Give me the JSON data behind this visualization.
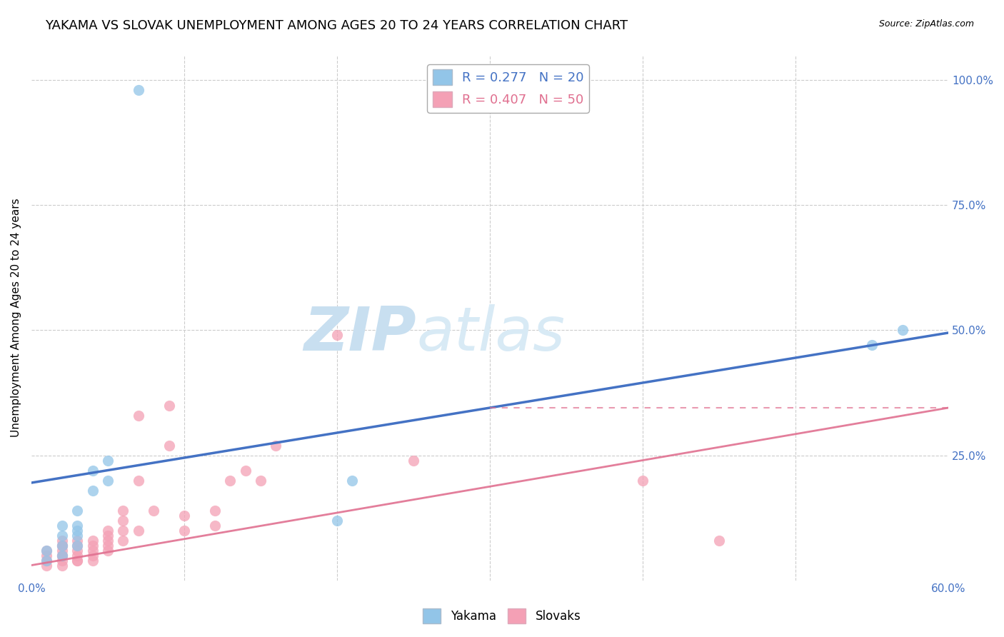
{
  "title": "YAKAMA VS SLOVAK UNEMPLOYMENT AMONG AGES 20 TO 24 YEARS CORRELATION CHART",
  "source": "Source: ZipAtlas.com",
  "ylabel": "Unemployment Among Ages 20 to 24 years",
  "xlim": [
    0.0,
    0.6
  ],
  "ylim": [
    0.0,
    1.05
  ],
  "legend_blue_label": "R = 0.277   N = 20",
  "legend_pink_label": "R = 0.407   N = 50",
  "bottom_legend_yakama": "Yakama",
  "bottom_legend_slovaks": "Slovaks",
  "yakama_color": "#92C5E8",
  "slovaks_color": "#F4A0B5",
  "yakama_edge": "#6AADD8",
  "slovaks_edge": "#E88098",
  "blue_line_color": "#4472C4",
  "pink_line_color": "#E07090",
  "bg_color": "#FFFFFF",
  "grid_color": "#CCCCCC",
  "watermark_zip_color": "#C8DFF0",
  "watermark_atlas_color": "#D8EAF5",
  "yakama_x": [
    0.01,
    0.01,
    0.02,
    0.02,
    0.02,
    0.02,
    0.03,
    0.03,
    0.03,
    0.03,
    0.03,
    0.04,
    0.04,
    0.05,
    0.05,
    0.07,
    0.2,
    0.21,
    0.55,
    0.57
  ],
  "yakama_y": [
    0.04,
    0.06,
    0.05,
    0.07,
    0.09,
    0.11,
    0.07,
    0.09,
    0.1,
    0.11,
    0.14,
    0.18,
    0.22,
    0.2,
    0.24,
    0.98,
    0.12,
    0.2,
    0.47,
    0.5
  ],
  "slovaks_x": [
    0.01,
    0.01,
    0.01,
    0.01,
    0.02,
    0.02,
    0.02,
    0.02,
    0.02,
    0.02,
    0.02,
    0.02,
    0.03,
    0.03,
    0.03,
    0.03,
    0.03,
    0.03,
    0.04,
    0.04,
    0.04,
    0.04,
    0.04,
    0.05,
    0.05,
    0.05,
    0.05,
    0.05,
    0.06,
    0.06,
    0.06,
    0.06,
    0.07,
    0.07,
    0.07,
    0.08,
    0.09,
    0.09,
    0.1,
    0.1,
    0.12,
    0.12,
    0.13,
    0.14,
    0.15,
    0.16,
    0.2,
    0.25,
    0.4,
    0.45
  ],
  "slovaks_y": [
    0.03,
    0.04,
    0.05,
    0.06,
    0.03,
    0.04,
    0.05,
    0.05,
    0.06,
    0.07,
    0.07,
    0.08,
    0.04,
    0.04,
    0.05,
    0.06,
    0.07,
    0.08,
    0.04,
    0.05,
    0.06,
    0.07,
    0.08,
    0.06,
    0.07,
    0.08,
    0.09,
    0.1,
    0.08,
    0.1,
    0.12,
    0.14,
    0.1,
    0.2,
    0.33,
    0.14,
    0.27,
    0.35,
    0.1,
    0.13,
    0.11,
    0.14,
    0.2,
    0.22,
    0.2,
    0.27,
    0.49,
    0.24,
    0.2,
    0.08
  ],
  "blue_line_x": [
    0.0,
    0.6
  ],
  "blue_line_y": [
    0.195,
    0.495
  ],
  "pink_line_x": [
    0.0,
    0.6
  ],
  "pink_line_y": [
    0.03,
    0.345
  ],
  "title_fontsize": 13,
  "axis_label_fontsize": 11,
  "tick_fontsize": 11,
  "legend_fontsize": 13,
  "marker_size": 120
}
